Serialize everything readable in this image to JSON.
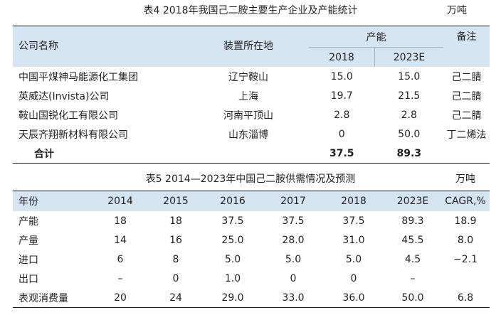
{
  "table4": {
    "caption": "表4  2018年我国己二胺主要生产企业及产能统计",
    "unit": "万吨",
    "headers": {
      "company": "公司名称",
      "location": "装置所在地",
      "capacity": "产能",
      "year1": "2018",
      "year2": "2023E",
      "note": "备注"
    },
    "rows": [
      {
        "company": "中国平煤神马能源化工集团",
        "location": "辽宁鞍山",
        "y2018": "15.0",
        "y2023": "15.0",
        "note": "己二腈"
      },
      {
        "company": "英威达(Invista)公司",
        "location": "上海",
        "y2018": "19.7",
        "y2023": "21.5",
        "note": "己二腈"
      },
      {
        "company": "鞍山国锐化工有限公司",
        "location": "河南平顶山",
        "y2018": "2.8",
        "y2023": "2.8",
        "note": "己二腈"
      },
      {
        "company": "天辰齐翔新材料有限公司",
        "location": "山东淄博",
        "y2018": "0",
        "y2023": "50.0",
        "note": "丁二烯法"
      }
    ],
    "total": {
      "label": "合计",
      "y2018": "37.5",
      "y2023": "89.3"
    }
  },
  "table5": {
    "caption": "表5  2014—2023年中国己二胺供需情况及预测",
    "unit": "万吨",
    "headers": [
      "年份",
      "2014",
      "2015",
      "2016",
      "2017",
      "2018",
      "2023E",
      "CAGR,%"
    ],
    "rows": [
      [
        "产能",
        "18",
        "18",
        "37.5",
        "37.5",
        "37.5",
        "89.3",
        "18.9"
      ],
      [
        "产量",
        "14",
        "16",
        "25.0",
        "28.0",
        "31.0",
        "45.5",
        "8.0"
      ],
      [
        "进口",
        "6",
        "8",
        "5.0",
        "5.0",
        "5.0",
        "4.5",
        "−2.1"
      ],
      [
        "出口",
        "–",
        "0",
        "1.0",
        "0",
        "0",
        "–",
        ""
      ],
      [
        "表观消费量",
        "20",
        "24",
        "29.0",
        "33.0",
        "36.0",
        "50.0",
        "6.8"
      ]
    ]
  }
}
